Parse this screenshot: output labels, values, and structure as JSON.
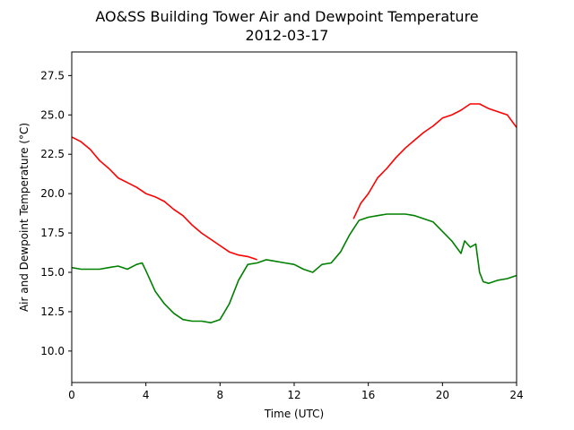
{
  "chart_data": {
    "type": "line",
    "title": "AO&SS Building Tower Air and Dewpoint Temperature",
    "subtitle": "2012-03-17",
    "xlabel": "Time (UTC)",
    "ylabel": "Air and Dewpoint Temperature (°C)",
    "xlim": [
      0,
      24
    ],
    "ylim": [
      8.0,
      29.0
    ],
    "xticks": [
      0,
      4,
      8,
      12,
      16,
      20,
      24
    ],
    "xtick_labels": [
      "0",
      "4",
      "8",
      "12",
      "16",
      "20",
      "24"
    ],
    "yticks": [
      10.0,
      12.5,
      15.0,
      17.5,
      20.0,
      22.5,
      25.0,
      27.5
    ],
    "ytick_labels": [
      "10.0",
      "12.5",
      "15.0",
      "17.5",
      "20.0",
      "22.5",
      "25.0",
      "27.5"
    ],
    "grid": false,
    "series": [
      {
        "color": "#ff0000",
        "x": [
          0.0,
          0.5,
          1.0,
          1.5,
          2.0,
          2.5,
          3.0,
          3.5,
          4.0,
          4.5,
          5.0,
          5.5,
          6.0,
          6.5,
          7.0,
          7.5,
          8.0,
          8.5,
          9.0,
          9.5,
          10.0
        ],
        "y": [
          23.6,
          23.3,
          22.8,
          22.1,
          21.6,
          21.0,
          20.7,
          20.4,
          20.0,
          19.8,
          19.5,
          19.0,
          18.6,
          18.0,
          17.5,
          17.1,
          16.7,
          16.3,
          16.1,
          16.0,
          15.8
        ]
      },
      {
        "color": "#ff0000",
        "x": [
          15.2,
          15.6,
          16.0,
          16.5,
          17.0,
          17.5,
          18.0,
          18.5,
          19.0,
          19.5,
          20.0,
          20.5,
          21.0,
          21.5,
          22.0,
          22.5,
          23.0,
          23.5,
          24.0
        ],
        "y": [
          18.4,
          19.4,
          20.0,
          21.0,
          21.6,
          22.3,
          22.9,
          23.4,
          23.9,
          24.3,
          24.8,
          25.0,
          25.3,
          25.7,
          25.7,
          25.4,
          25.2,
          25.0,
          24.2
        ]
      },
      {
        "color": "#008000",
        "x": [
          0.0,
          0.5,
          1.0,
          1.5,
          2.0,
          2.5,
          3.0,
          3.5,
          3.8,
          4.0,
          4.5,
          5.0,
          5.5,
          6.0,
          6.5,
          7.0,
          7.5,
          8.0,
          8.5,
          9.0,
          9.5,
          10.0,
          10.5,
          11.0,
          11.5,
          12.0,
          12.5,
          13.0,
          13.5,
          14.0,
          14.5,
          15.0,
          15.5,
          16.0,
          16.5,
          17.0,
          17.5,
          18.0,
          18.5,
          19.0,
          19.5,
          20.0,
          20.5,
          21.0,
          21.2,
          21.5,
          21.8,
          22.0,
          22.2,
          22.5,
          23.0,
          23.5,
          24.0
        ],
        "y": [
          15.3,
          15.2,
          15.2,
          15.2,
          15.3,
          15.4,
          15.2,
          15.5,
          15.6,
          15.1,
          13.8,
          13.0,
          12.4,
          12.0,
          11.9,
          11.9,
          11.8,
          12.0,
          13.0,
          14.5,
          15.5,
          15.6,
          15.8,
          15.7,
          15.6,
          15.5,
          15.2,
          15.0,
          15.5,
          15.6,
          16.3,
          17.4,
          18.3,
          18.5,
          18.6,
          18.7,
          18.7,
          18.7,
          18.6,
          18.4,
          18.2,
          17.6,
          17.0,
          16.2,
          17.0,
          16.6,
          16.8,
          15.0,
          14.4,
          14.3,
          14.5,
          14.6,
          14.8
        ]
      }
    ]
  }
}
